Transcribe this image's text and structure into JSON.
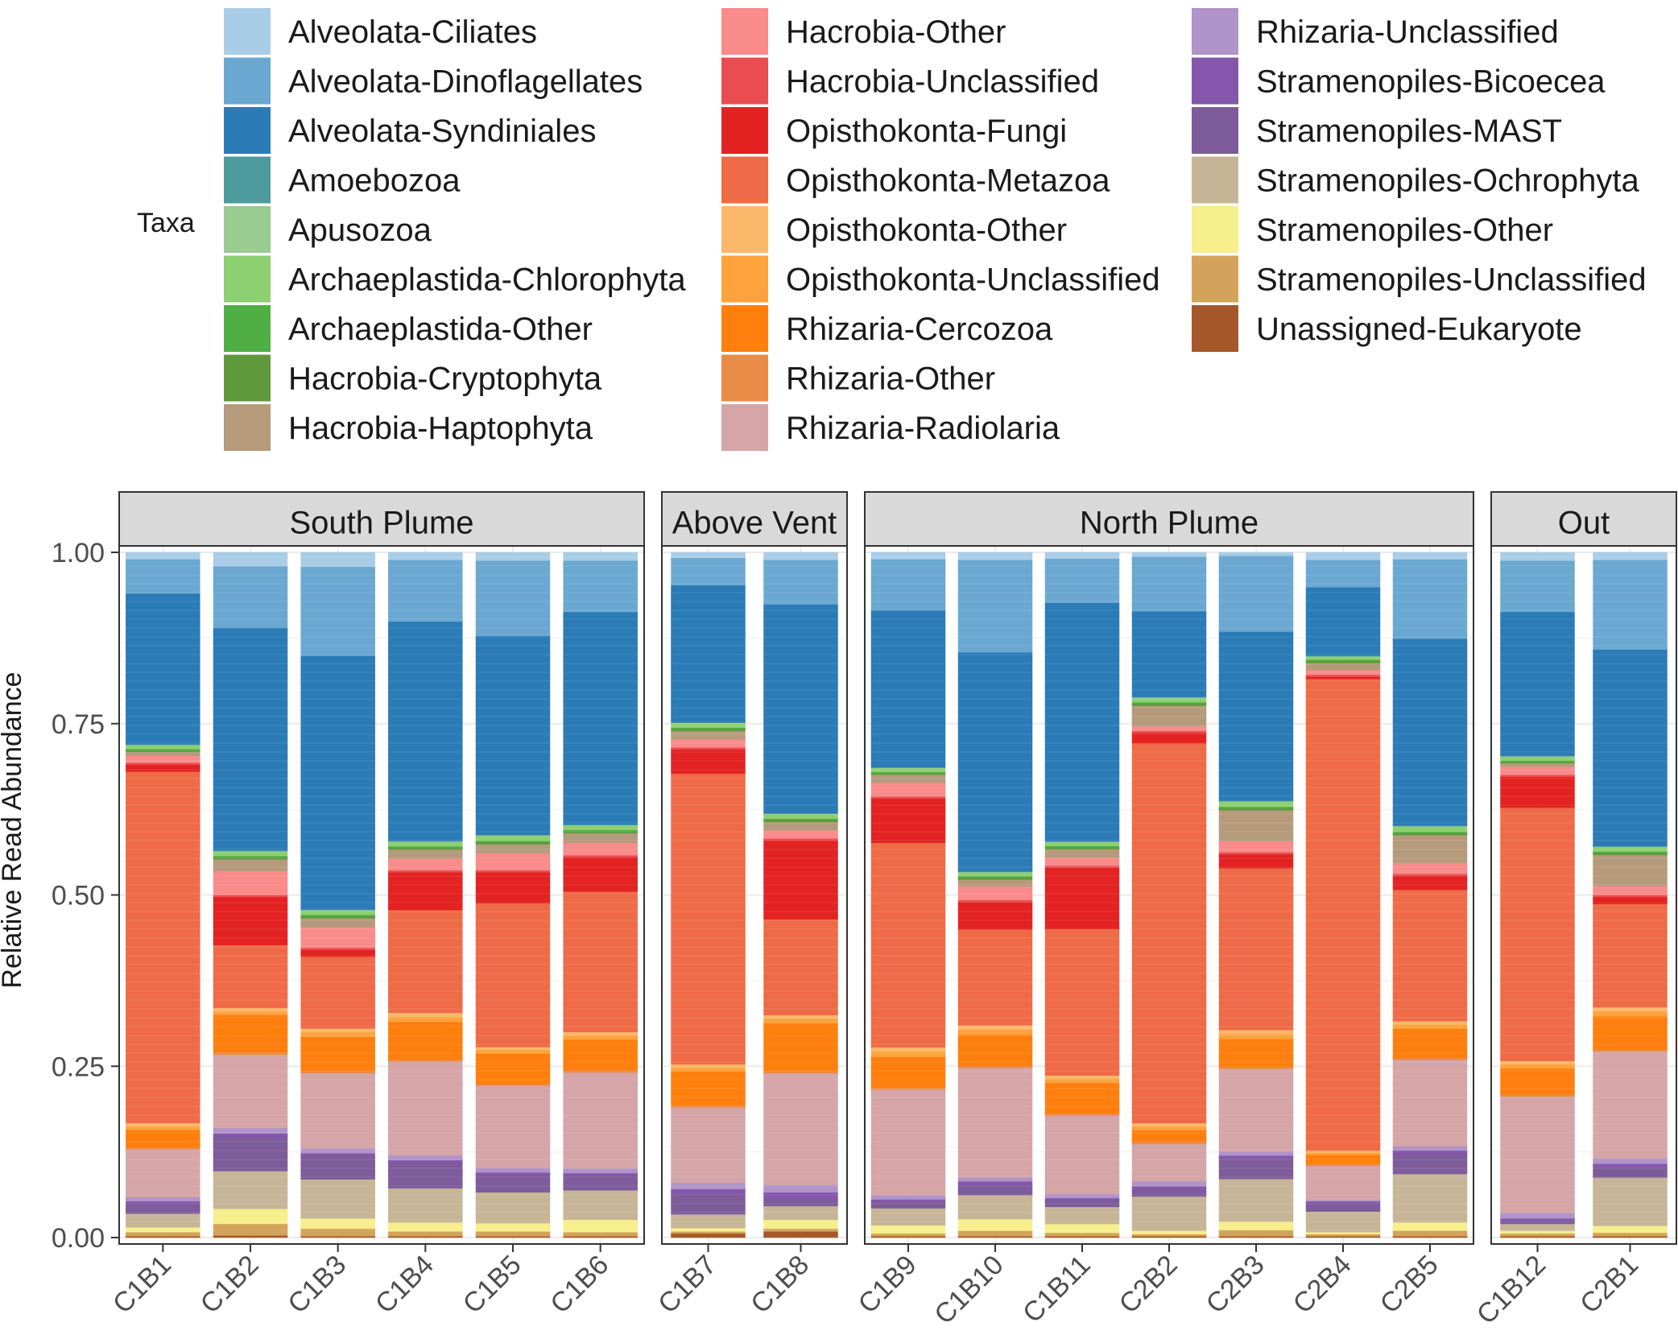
{
  "chart_data": {
    "type": "bar",
    "stacked": true,
    "xlabel": "",
    "ylabel": "Relative Read Abundance",
    "ylim": [
      0,
      1
    ],
    "yticks": [
      "0.00",
      "0.25",
      "0.50",
      "0.75",
      "1.00"
    ],
    "legend_title": "Taxa",
    "legend_position": "top",
    "facets": [
      {
        "name": "South Plume",
        "samples": [
          "C1B1",
          "C1B2",
          "C1B3",
          "C1B4",
          "C1B5",
          "C1B6"
        ]
      },
      {
        "name": "Above Vent",
        "samples": [
          "C1B7",
          "C1B8"
        ]
      },
      {
        "name": "North Plume",
        "samples": [
          "C1B9",
          "C1B10",
          "C1B11",
          "C2B2",
          "C2B3",
          "C2B4",
          "C2B5"
        ]
      },
      {
        "name": "Out",
        "samples": [
          "C1B12",
          "C2B1"
        ]
      }
    ],
    "categories": [
      "C1B1",
      "C1B2",
      "C1B3",
      "C1B4",
      "C1B5",
      "C1B6",
      "C1B7",
      "C1B8",
      "C1B9",
      "C1B10",
      "C1B11",
      "C2B2",
      "C2B3",
      "C2B4",
      "C2B5",
      "C1B12",
      "C2B1"
    ],
    "series": [
      {
        "name": "Unassigned-Eukaryote",
        "color": "#a6582a",
        "values": [
          0.002,
          0.003,
          0.002,
          0.002,
          0.002,
          0.002,
          0.006,
          0.009,
          0.002,
          0.002,
          0.002,
          0.002,
          0.002,
          0.002,
          0.002,
          0.002,
          0.002
        ]
      },
      {
        "name": "Stramenopiles-Unclassified",
        "color": "#d4a35b",
        "values": [
          0.006,
          0.017,
          0.011,
          0.007,
          0.007,
          0.006,
          0.003,
          0.004,
          0.004,
          0.008,
          0.005,
          0.003,
          0.009,
          0.003,
          0.008,
          0.004,
          0.005
        ]
      },
      {
        "name": "Stramenopiles-Other",
        "color": "#f7ee8c",
        "values": [
          0.007,
          0.022,
          0.015,
          0.013,
          0.012,
          0.018,
          0.005,
          0.013,
          0.012,
          0.017,
          0.013,
          0.005,
          0.012,
          0.003,
          0.012,
          0.004,
          0.01
        ]
      },
      {
        "name": "Stramenopiles-Ochrophyta",
        "color": "#c7b597",
        "values": [
          0.02,
          0.055,
          0.057,
          0.05,
          0.045,
          0.043,
          0.02,
          0.02,
          0.025,
          0.035,
          0.025,
          0.05,
          0.062,
          0.03,
          0.07,
          0.01,
          0.07
        ]
      },
      {
        "name": "Stramenopiles-MAST",
        "color": "#7e5b9a",
        "values": [
          0.015,
          0.05,
          0.035,
          0.038,
          0.025,
          0.022,
          0.03,
          0.01,
          0.01,
          0.015,
          0.01,
          0.01,
          0.03,
          0.012,
          0.03,
          0.005,
          0.015
        ]
      },
      {
        "name": "Stramenopiles-Bicoecea",
        "color": "#8557ac",
        "values": [
          0.003,
          0.005,
          0.003,
          0.003,
          0.004,
          0.003,
          0.007,
          0.01,
          0.003,
          0.005,
          0.003,
          0.005,
          0.004,
          0.003,
          0.004,
          0.003,
          0.005
        ]
      },
      {
        "name": "Rhizaria-Unclassified",
        "color": "#b093c9",
        "values": [
          0.006,
          0.008,
          0.007,
          0.007,
          0.007,
          0.007,
          0.009,
          0.011,
          0.006,
          0.006,
          0.006,
          0.007,
          0.006,
          0.002,
          0.006,
          0.008,
          0.008
        ]
      },
      {
        "name": "Rhizaria-Radiolaria",
        "color": "#d5a5a7",
        "values": [
          0.07,
          0.107,
          0.11,
          0.137,
          0.12,
          0.14,
          0.11,
          0.163,
          0.155,
          0.16,
          0.115,
          0.055,
          0.12,
          0.05,
          0.125,
          0.17,
          0.155
        ]
      },
      {
        "name": "Rhizaria-Other",
        "color": "#e98c48",
        "values": [
          0.003,
          0.003,
          0.003,
          0.003,
          0.002,
          0.003,
          0.003,
          0.003,
          0.003,
          0.003,
          0.003,
          0.003,
          0.003,
          0.003,
          0.003,
          0.003,
          0.003
        ]
      },
      {
        "name": "Rhizaria-Cercozoa",
        "color": "#ff7f0e",
        "values": [
          0.025,
          0.055,
          0.05,
          0.055,
          0.045,
          0.045,
          0.05,
          0.07,
          0.045,
          0.045,
          0.045,
          0.017,
          0.04,
          0.013,
          0.042,
          0.038,
          0.048
        ]
      },
      {
        "name": "Opisthokonta-Unclassified",
        "color": "#fea23d",
        "values": [
          0.005,
          0.005,
          0.007,
          0.007,
          0.005,
          0.006,
          0.005,
          0.007,
          0.008,
          0.008,
          0.006,
          0.005,
          0.007,
          0.003,
          0.006,
          0.006,
          0.007
        ]
      },
      {
        "name": "Opisthokonta-Other",
        "color": "#fbb86b",
        "values": [
          0.005,
          0.005,
          0.005,
          0.006,
          0.004,
          0.005,
          0.005,
          0.005,
          0.006,
          0.006,
          0.005,
          0.005,
          0.006,
          0.003,
          0.005,
          0.005,
          0.006
        ]
      },
      {
        "name": "Opisthokonta-Metazoa",
        "color": "#ef6b47",
        "values": [
          0.513,
          0.092,
          0.105,
          0.15,
          0.21,
          0.205,
          0.425,
          0.14,
          0.3,
          0.14,
          0.215,
          0.555,
          0.235,
          0.69,
          0.19,
          0.37,
          0.15
        ]
      },
      {
        "name": "Opisthokonta-Fungi",
        "color": "#e32222",
        "values": [
          0.01,
          0.07,
          0.01,
          0.055,
          0.045,
          0.05,
          0.035,
          0.115,
          0.065,
          0.04,
          0.09,
          0.015,
          0.02,
          0.003,
          0.02,
          0.045,
          0.01
        ]
      },
      {
        "name": "Hacrobia-Unclassified",
        "color": "#ea4d51",
        "values": [
          0.003,
          0.003,
          0.003,
          0.003,
          0.003,
          0.003,
          0.003,
          0.003,
          0.003,
          0.003,
          0.003,
          0.003,
          0.003,
          0.003,
          0.003,
          0.003,
          0.003
        ]
      },
      {
        "name": "Hacrobia-Other",
        "color": "#f98b8b",
        "values": [
          0.01,
          0.035,
          0.03,
          0.017,
          0.025,
          0.018,
          0.012,
          0.012,
          0.02,
          0.02,
          0.012,
          0.007,
          0.016,
          0.007,
          0.016,
          0.012,
          0.013
        ]
      },
      {
        "name": "Hacrobia-Haptophyta",
        "color": "#b59b7c",
        "values": [
          0.006,
          0.017,
          0.013,
          0.013,
          0.013,
          0.014,
          0.012,
          0.012,
          0.012,
          0.01,
          0.012,
          0.03,
          0.045,
          0.01,
          0.04,
          0.005,
          0.045
        ]
      },
      {
        "name": "Hacrobia-Cryptophyta",
        "color": "#5e9a3c",
        "values": [
          0.002,
          0.003,
          0.003,
          0.003,
          0.003,
          0.003,
          0.003,
          0.003,
          0.002,
          0.003,
          0.003,
          0.003,
          0.003,
          0.003,
          0.003,
          0.002,
          0.003
        ]
      },
      {
        "name": "Archaeplastida-Other",
        "color": "#4fae44",
        "values": [
          0.002,
          0.002,
          0.002,
          0.002,
          0.002,
          0.002,
          0.002,
          0.002,
          0.002,
          0.002,
          0.002,
          0.002,
          0.002,
          0.002,
          0.002,
          0.002,
          0.002
        ]
      },
      {
        "name": "Archaeplastida-Chlorophyta",
        "color": "#8cd071",
        "values": [
          0.005,
          0.006,
          0.006,
          0.006,
          0.007,
          0.006,
          0.006,
          0.006,
          0.005,
          0.005,
          0.005,
          0.006,
          0.007,
          0.004,
          0.007,
          0.005,
          0.006
        ]
      },
      {
        "name": "Apusozoa",
        "color": "#9acb91",
        "values": [
          0.001,
          0.001,
          0.001,
          0.001,
          0.001,
          0.001,
          0.001,
          0.001,
          0.001,
          0.001,
          0.001,
          0.001,
          0.001,
          0.001,
          0.001,
          0.001,
          0.001
        ]
      },
      {
        "name": "Amoebozoa",
        "color": "#4e9b9e",
        "values": [
          0.001,
          0.001,
          0.001,
          0.001,
          0.001,
          0.001,
          0.001,
          0.001,
          0.001,
          0.001,
          0.001,
          0.001,
          0.001,
          0.001,
          0.001,
          0.001,
          0.001
        ]
      },
      {
        "name": "Alveolata-Syndiniales",
        "color": "#2b7bb7",
        "values": [
          0.22,
          0.325,
          0.37,
          0.32,
          0.29,
          0.31,
          0.2,
          0.305,
          0.23,
          0.32,
          0.35,
          0.125,
          0.245,
          0.1,
          0.27,
          0.21,
          0.285
        ]
      },
      {
        "name": "Alveolata-Dinoflagellates",
        "color": "#6aa8d2",
        "values": [
          0.05,
          0.09,
          0.13,
          0.09,
          0.11,
          0.075,
          0.04,
          0.065,
          0.075,
          0.135,
          0.065,
          0.08,
          0.11,
          0.04,
          0.115,
          0.075,
          0.13
        ]
      },
      {
        "name": "Alveolata-Ciliates",
        "color": "#a9cde7",
        "values": [
          0.01,
          0.02,
          0.021,
          0.011,
          0.012,
          0.012,
          0.008,
          0.011,
          0.01,
          0.011,
          0.009,
          0.006,
          0.005,
          0.011,
          0.01,
          0.012,
          0.011
        ]
      }
    ],
    "legend_columns": [
      [
        "Alveolata-Ciliates",
        "Alveolata-Dinoflagellates",
        "Alveolata-Syndiniales",
        "Amoebozoa",
        "Apusozoa",
        "Archaeplastida-Chlorophyta",
        "Archaeplastida-Other",
        "Hacrobia-Cryptophyta",
        "Hacrobia-Haptophyta"
      ],
      [
        "Hacrobia-Other",
        "Hacrobia-Unclassified",
        "Opisthokonta-Fungi",
        "Opisthokonta-Metazoa",
        "Opisthokonta-Other",
        "Opisthokonta-Unclassified",
        "Rhizaria-Cercozoa",
        "Rhizaria-Other",
        "Rhizaria-Radiolaria"
      ],
      [
        "Rhizaria-Unclassified",
        "Stramenopiles-Bicoecea",
        "Stramenopiles-MAST",
        "Stramenopiles-Ochrophyta",
        "Stramenopiles-Other",
        "Stramenopiles-Unclassified",
        "Unassigned-Eukaryote"
      ]
    ]
  }
}
